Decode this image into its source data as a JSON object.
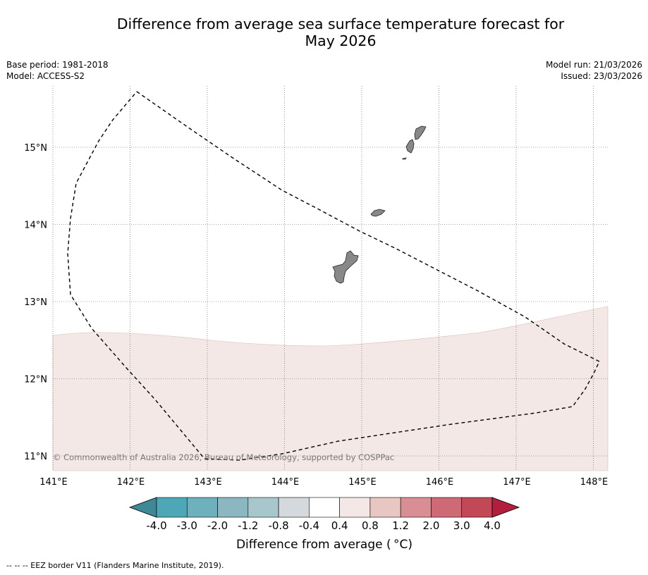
{
  "title": {
    "line1": "Difference from average sea surface temperature forecast for",
    "line2": "May 2026"
  },
  "meta": {
    "base_period": "Base period: 1981-2018",
    "model": "Model: ACCESS-S2",
    "model_run": "Model run: 21/03/2026",
    "issued": "Issued: 23/03/2026"
  },
  "map": {
    "lon_labels": [
      "141°E",
      "142°E",
      "143°E",
      "144°E",
      "145°E",
      "146°E",
      "147°E",
      "148°E"
    ],
    "lat_labels": [
      "15°N",
      "14°N",
      "13°N",
      "12°N",
      "11°N"
    ],
    "lon_range": [
      141,
      148.2
    ],
    "lat_range": [
      10.8,
      15.8
    ],
    "copyright": "© Commonwealth of Australia 2026, Bureau of Meteorology, supported by COSPPac",
    "anomaly_band_label": "0.4 to 0.8",
    "anomaly_color": "#f4e8e6",
    "land_color": "#888888"
  },
  "colorbar": {
    "labels": [
      "-4.0",
      "-3.0",
      "-2.0",
      "-1.2",
      "-0.8",
      "-0.4",
      "0.4",
      "0.8",
      "1.2",
      "2.0",
      "3.0",
      "4.0"
    ],
    "colors": [
      "#3f8896",
      "#4ea7b6",
      "#6eb1bc",
      "#8cb7c1",
      "#a8c7cc",
      "#d3d9dc",
      "#ffffff",
      "#f4e8e6",
      "#e8c6c2",
      "#d98d95",
      "#cd6a76",
      "#c24858",
      "#b31d3e"
    ],
    "title": "Difference from average ( °C)"
  },
  "footer": {
    "eez_legend": "--  --  -- EEZ border V11 (Flanders Marine Institute, 2019)."
  }
}
